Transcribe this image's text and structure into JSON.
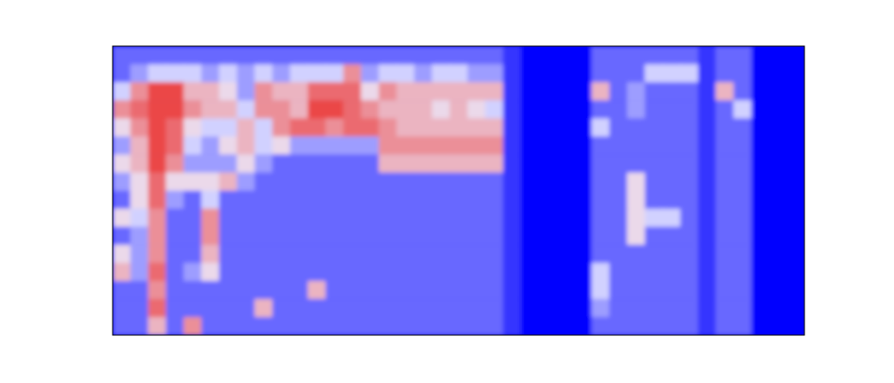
{
  "chart_data": {
    "type": "heatmap",
    "tick_labels": false,
    "value_range": [
      0,
      9
    ],
    "cells": [
      [
        2,
        2,
        2,
        2,
        2,
        2,
        2,
        2,
        2,
        2,
        2,
        2,
        2,
        2,
        2,
        2,
        2,
        2,
        2,
        2,
        2,
        2,
        1,
        0,
        0,
        0,
        0,
        2,
        2,
        2,
        2,
        2,
        2,
        1,
        2,
        2,
        0,
        0,
        0
      ],
      [
        2,
        3,
        4,
        4,
        4,
        3,
        4,
        3,
        4,
        3,
        4,
        4,
        4,
        7,
        3,
        4,
        4,
        3,
        4,
        4,
        3,
        3,
        1,
        0,
        0,
        0,
        0,
        2,
        2,
        2,
        4,
        4,
        4,
        1,
        2,
        2,
        0,
        0,
        0
      ],
      [
        4,
        7,
        9,
        9,
        6,
        6,
        5,
        3,
        7,
        6,
        6,
        8,
        8,
        8,
        5,
        7,
        6,
        6,
        6,
        6,
        6,
        6,
        1,
        0,
        0,
        0,
        0,
        6,
        2,
        3,
        2,
        2,
        2,
        1,
        6,
        2,
        0,
        0,
        0
      ],
      [
        7,
        8,
        9,
        9,
        7,
        6,
        6,
        4,
        7,
        7,
        6,
        9,
        9,
        8,
        7,
        6,
        6,
        6,
        5,
        6,
        5,
        4,
        1,
        0,
        0,
        0,
        0,
        2,
        2,
        3,
        2,
        2,
        2,
        1,
        2,
        4,
        0,
        0,
        0
      ],
      [
        5,
        7,
        9,
        8,
        5,
        4,
        4,
        6,
        4,
        7,
        8,
        8,
        7,
        8,
        8,
        7,
        6,
        6,
        6,
        6,
        6,
        6,
        1,
        0,
        0,
        0,
        0,
        4,
        2,
        2,
        2,
        2,
        2,
        1,
        2,
        2,
        0,
        0,
        0
      ],
      [
        3,
        6,
        9,
        8,
        4,
        3,
        5,
        6,
        4,
        5,
        3,
        3,
        3,
        3,
        3,
        7,
        7,
        7,
        7,
        7,
        7,
        7,
        1,
        0,
        0,
        0,
        0,
        2,
        2,
        2,
        2,
        2,
        2,
        1,
        2,
        2,
        0,
        0,
        0
      ],
      [
        5,
        6,
        9,
        7,
        3,
        3,
        3,
        5,
        3,
        2,
        2,
        2,
        2,
        2,
        2,
        6,
        6,
        6,
        6,
        6,
        6,
        6,
        1,
        0,
        0,
        0,
        0,
        2,
        2,
        2,
        2,
        2,
        2,
        1,
        2,
        2,
        0,
        0,
        0
      ],
      [
        3,
        5,
        8,
        5,
        5,
        5,
        6,
        3,
        2,
        2,
        2,
        2,
        2,
        2,
        2,
        2,
        2,
        2,
        2,
        2,
        2,
        2,
        1,
        0,
        0,
        0,
        0,
        2,
        2,
        5,
        2,
        2,
        2,
        1,
        2,
        2,
        0,
        0,
        0
      ],
      [
        2,
        5,
        8,
        3,
        2,
        4,
        2,
        2,
        2,
        2,
        2,
        2,
        2,
        2,
        2,
        2,
        2,
        2,
        2,
        2,
        2,
        2,
        1,
        0,
        0,
        0,
        0,
        2,
        2,
        5,
        2,
        2,
        2,
        1,
        2,
        2,
        0,
        0,
        0
      ],
      [
        5,
        4,
        7,
        2,
        2,
        7,
        2,
        2,
        2,
        2,
        2,
        2,
        2,
        2,
        2,
        2,
        2,
        2,
        2,
        2,
        2,
        2,
        1,
        0,
        0,
        0,
        0,
        2,
        2,
        5,
        4,
        4,
        2,
        1,
        2,
        2,
        0,
        0,
        0
      ],
      [
        2,
        3,
        7,
        2,
        2,
        7,
        2,
        2,
        2,
        2,
        2,
        2,
        2,
        2,
        2,
        2,
        2,
        2,
        2,
        2,
        2,
        2,
        1,
        0,
        0,
        0,
        0,
        2,
        2,
        5,
        2,
        2,
        2,
        1,
        2,
        2,
        0,
        0,
        0
      ],
      [
        5,
        3,
        7,
        2,
        2,
        6,
        2,
        2,
        2,
        2,
        2,
        2,
        2,
        2,
        2,
        2,
        2,
        2,
        2,
        2,
        2,
        2,
        1,
        0,
        0,
        0,
        0,
        2,
        2,
        2,
        2,
        2,
        2,
        1,
        2,
        2,
        0,
        0,
        0
      ],
      [
        6,
        3,
        8,
        2,
        3,
        5,
        2,
        2,
        2,
        2,
        2,
        2,
        2,
        2,
        2,
        2,
        2,
        2,
        2,
        2,
        2,
        2,
        1,
        0,
        0,
        0,
        0,
        4,
        2,
        2,
        2,
        2,
        2,
        1,
        2,
        2,
        0,
        0,
        0
      ],
      [
        2,
        2,
        7,
        2,
        2,
        2,
        2,
        2,
        2,
        2,
        2,
        6,
        2,
        2,
        2,
        2,
        2,
        2,
        2,
        2,
        2,
        2,
        1,
        0,
        0,
        0,
        0,
        4,
        2,
        2,
        2,
        2,
        2,
        1,
        2,
        2,
        0,
        0,
        0
      ],
      [
        2,
        2,
        8,
        2,
        2,
        2,
        2,
        2,
        6,
        2,
        2,
        2,
        2,
        2,
        2,
        2,
        2,
        2,
        2,
        2,
        2,
        2,
        1,
        0,
        0,
        0,
        0,
        3,
        2,
        2,
        2,
        2,
        2,
        1,
        2,
        2,
        0,
        0,
        0
      ],
      [
        2,
        2,
        6,
        2,
        7,
        2,
        2,
        2,
        2,
        2,
        2,
        2,
        2,
        2,
        2,
        2,
        2,
        2,
        2,
        2,
        2,
        2,
        1,
        0,
        0,
        0,
        0,
        2,
        2,
        2,
        2,
        2,
        2,
        1,
        2,
        2,
        0,
        0,
        0
      ]
    ]
  }
}
